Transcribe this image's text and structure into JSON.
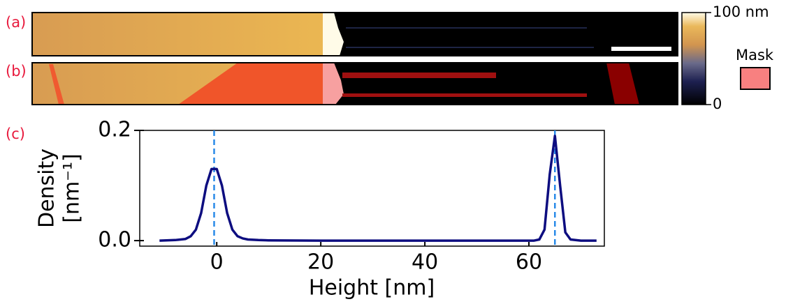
{
  "panel_labels": [
    "(a)",
    "(b)",
    "(c)"
  ],
  "colorbar": {
    "ticks": [
      {
        "value": 100,
        "label": "100 nm"
      },
      0
    ],
    "lim": [
      0,
      100
    ]
  },
  "mask_label": "Mask",
  "chart_data": {
    "type": "line",
    "x_label": "Height [nm]",
    "y_label": [
      "Density",
      "[nm⁻¹]"
    ],
    "x": [
      -11,
      -8,
      -6,
      -5,
      -4,
      -3,
      -2,
      -1,
      0,
      1,
      2,
      3,
      4,
      5,
      6,
      8,
      10,
      20,
      30,
      40,
      50,
      60,
      61,
      62,
      63,
      64,
      65,
      66,
      67,
      68,
      70,
      73
    ],
    "series": [
      {
        "color": "#0d0d80",
        "values": [
          0,
          0.001,
          0.003,
          0.008,
          0.02,
          0.05,
          0.1,
          0.13,
          0.13,
          0.1,
          0.05,
          0.02,
          0.008,
          0.004,
          0.002,
          0.001,
          0.0005,
          0,
          0,
          0,
          0,
          0,
          0,
          0.002,
          0.02,
          0.12,
          0.19,
          0.1,
          0.015,
          0.002,
          0,
          0
        ]
      }
    ],
    "vlines": [
      -0.5,
      65
    ],
    "vline_color": "#2a8be8",
    "xlim": [
      -14.8,
      74.5
    ],
    "ylim": [
      -0.01,
      0.2
    ],
    "xticks": [
      0,
      20,
      40,
      60
    ],
    "yticks": [
      {
        "value": 0,
        "label": "0.0"
      },
      0.2
    ]
  }
}
